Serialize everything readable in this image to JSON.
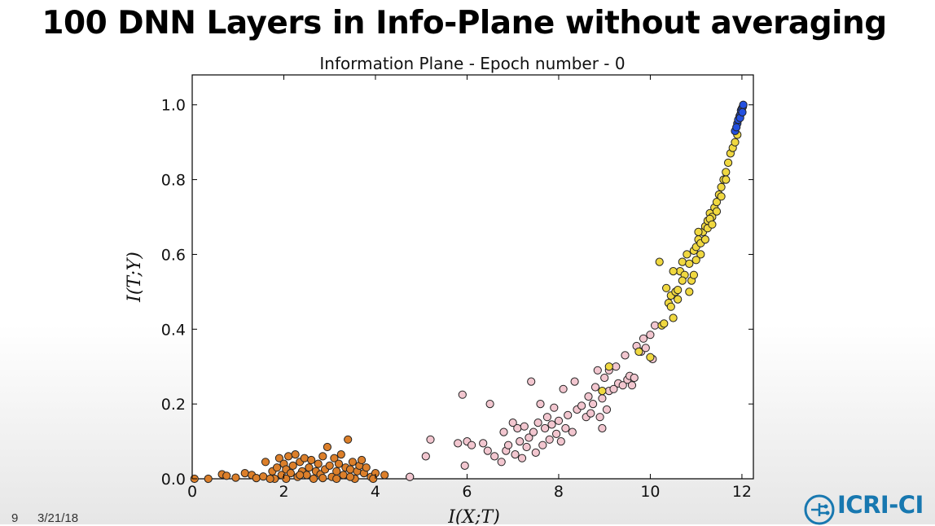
{
  "slide": {
    "title": "100 DNN Layers in Info-Plane without averaging",
    "footer_number": "9",
    "footer_date": "3/21/18"
  },
  "logo": {
    "text": "ICRI-CI",
    "color": "#1878b0"
  },
  "chart_data": {
    "type": "scatter",
    "title": "Information Plane - Epoch number - 0",
    "xlabel": "I(X;T)",
    "ylabel": "I(T;Y)",
    "xlim": [
      0,
      12.25
    ],
    "ylim": [
      0,
      1.08
    ],
    "xticks": [
      0,
      2,
      4,
      6,
      8,
      10,
      12
    ],
    "yticks": [
      0.0,
      0.2,
      0.4,
      0.6,
      0.8,
      1.0
    ],
    "grid": false,
    "legend": "none",
    "marker_edge_color": "#222222",
    "series": [
      {
        "color": "#dc7f2a",
        "points": [
          [
            0.05,
            0.0
          ],
          [
            0.35,
            0.0
          ],
          [
            0.65,
            0.012
          ],
          [
            0.75,
            0.008
          ],
          [
            0.95,
            0.003
          ],
          [
            1.15,
            0.015
          ],
          [
            1.3,
            0.01
          ],
          [
            1.4,
            0.002
          ],
          [
            1.55,
            0.006
          ],
          [
            1.6,
            0.045
          ],
          [
            1.75,
            0.02
          ],
          [
            1.8,
            0.0
          ],
          [
            1.85,
            0.03
          ],
          [
            1.9,
            0.055
          ],
          [
            1.95,
            0.01
          ],
          [
            2.0,
            0.04
          ],
          [
            2.05,
            0.025
          ],
          [
            2.1,
            0.06
          ],
          [
            2.15,
            0.015
          ],
          [
            2.2,
            0.035
          ],
          [
            2.25,
            0.065
          ],
          [
            2.3,
            0.005
          ],
          [
            2.35,
            0.045
          ],
          [
            2.4,
            0.02
          ],
          [
            2.45,
            0.055
          ],
          [
            2.5,
            0.01
          ],
          [
            2.55,
            0.03
          ],
          [
            2.6,
            0.05
          ],
          [
            2.65,
            0.0
          ],
          [
            2.7,
            0.02
          ],
          [
            2.75,
            0.04
          ],
          [
            2.8,
            0.012
          ],
          [
            2.85,
            0.06
          ],
          [
            2.9,
            0.025
          ],
          [
            2.95,
            0.085
          ],
          [
            3.0,
            0.035
          ],
          [
            3.05,
            0.005
          ],
          [
            3.1,
            0.055
          ],
          [
            3.15,
            0.02
          ],
          [
            3.2,
            0.04
          ],
          [
            3.25,
            0.065
          ],
          [
            3.3,
            0.01
          ],
          [
            3.35,
            0.03
          ],
          [
            3.4,
            0.105
          ],
          [
            3.45,
            0.025
          ],
          [
            3.5,
            0.045
          ],
          [
            3.55,
            0.0
          ],
          [
            3.6,
            0.02
          ],
          [
            3.65,
            0.035
          ],
          [
            3.7,
            0.05
          ],
          [
            3.75,
            0.015
          ],
          [
            3.8,
            0.03
          ],
          [
            3.9,
            0.005
          ],
          [
            4.0,
            0.015
          ],
          [
            4.2,
            0.01
          ],
          [
            4.75,
            0.005
          ],
          [
            1.7,
            0.0
          ],
          [
            2.35,
            0.01
          ],
          [
            2.85,
            0.002
          ],
          [
            3.45,
            0.005
          ],
          [
            3.95,
            0.0
          ],
          [
            2.05,
            0.0
          ],
          [
            3.15,
            0.0
          ]
        ]
      },
      {
        "color": "#f2c6cf",
        "points": [
          [
            4.75,
            0.005
          ],
          [
            5.1,
            0.06
          ],
          [
            5.2,
            0.105
          ],
          [
            5.8,
            0.095
          ],
          [
            5.9,
            0.225
          ],
          [
            5.95,
            0.035
          ],
          [
            6.0,
            0.1
          ],
          [
            6.1,
            0.09
          ],
          [
            6.35,
            0.095
          ],
          [
            6.45,
            0.075
          ],
          [
            6.5,
            0.2
          ],
          [
            6.6,
            0.06
          ],
          [
            6.75,
            0.045
          ],
          [
            6.8,
            0.125
          ],
          [
            6.85,
            0.075
          ],
          [
            6.9,
            0.09
          ],
          [
            7.0,
            0.15
          ],
          [
            7.05,
            0.065
          ],
          [
            7.1,
            0.135
          ],
          [
            7.15,
            0.1
          ],
          [
            7.2,
            0.055
          ],
          [
            7.25,
            0.14
          ],
          [
            7.3,
            0.085
          ],
          [
            7.35,
            0.11
          ],
          [
            7.4,
            0.26
          ],
          [
            7.45,
            0.125
          ],
          [
            7.5,
            0.07
          ],
          [
            7.55,
            0.15
          ],
          [
            7.6,
            0.2
          ],
          [
            7.65,
            0.09
          ],
          [
            7.7,
            0.135
          ],
          [
            7.75,
            0.165
          ],
          [
            7.8,
            0.105
          ],
          [
            7.85,
            0.145
          ],
          [
            7.9,
            0.19
          ],
          [
            7.95,
            0.12
          ],
          [
            8.0,
            0.155
          ],
          [
            8.05,
            0.1
          ],
          [
            8.1,
            0.24
          ],
          [
            8.15,
            0.135
          ],
          [
            8.2,
            0.17
          ],
          [
            8.3,
            0.125
          ],
          [
            8.35,
            0.26
          ],
          [
            8.4,
            0.185
          ],
          [
            8.5,
            0.195
          ],
          [
            8.6,
            0.165
          ],
          [
            8.65,
            0.22
          ],
          [
            8.7,
            0.175
          ],
          [
            8.75,
            0.2
          ],
          [
            8.8,
            0.245
          ],
          [
            8.85,
            0.29
          ],
          [
            8.9,
            0.165
          ],
          [
            8.95,
            0.215
          ],
          [
            9.0,
            0.27
          ],
          [
            9.05,
            0.185
          ],
          [
            9.1,
            0.235
          ],
          [
            9.2,
            0.24
          ],
          [
            9.25,
            0.3
          ],
          [
            9.3,
            0.255
          ],
          [
            9.4,
            0.25
          ],
          [
            9.45,
            0.33
          ],
          [
            9.5,
            0.265
          ],
          [
            9.55,
            0.275
          ],
          [
            9.6,
            0.25
          ],
          [
            9.7,
            0.355
          ],
          [
            9.8,
            0.34
          ],
          [
            9.85,
            0.375
          ],
          [
            9.9,
            0.35
          ],
          [
            10.0,
            0.385
          ],
          [
            10.05,
            0.32
          ],
          [
            10.1,
            0.41
          ],
          [
            8.95,
            0.135
          ],
          [
            9.1,
            0.29
          ],
          [
            9.65,
            0.27
          ]
        ]
      },
      {
        "color": "#f0d840",
        "points": [
          [
            8.95,
            0.235
          ],
          [
            9.1,
            0.3
          ],
          [
            9.75,
            0.34
          ],
          [
            10.0,
            0.325
          ],
          [
            10.2,
            0.58
          ],
          [
            10.25,
            0.41
          ],
          [
            10.3,
            0.415
          ],
          [
            10.35,
            0.51
          ],
          [
            10.4,
            0.47
          ],
          [
            10.45,
            0.49
          ],
          [
            10.5,
            0.43
          ],
          [
            10.55,
            0.5
          ],
          [
            10.6,
            0.48
          ],
          [
            10.65,
            0.555
          ],
          [
            10.7,
            0.58
          ],
          [
            10.75,
            0.545
          ],
          [
            10.8,
            0.6
          ],
          [
            10.85,
            0.575
          ],
          [
            10.9,
            0.53
          ],
          [
            10.95,
            0.61
          ],
          [
            11.0,
            0.62
          ],
          [
            11.05,
            0.64
          ],
          [
            11.1,
            0.6
          ],
          [
            11.15,
            0.66
          ],
          [
            11.2,
            0.675
          ],
          [
            11.25,
            0.69
          ],
          [
            11.3,
            0.71
          ],
          [
            11.35,
            0.7
          ],
          [
            11.4,
            0.725
          ],
          [
            11.45,
            0.74
          ],
          [
            11.5,
            0.76
          ],
          [
            11.55,
            0.78
          ],
          [
            11.6,
            0.8
          ],
          [
            11.65,
            0.82
          ],
          [
            11.7,
            0.845
          ],
          [
            11.75,
            0.87
          ],
          [
            11.8,
            0.885
          ],
          [
            11.85,
            0.9
          ],
          [
            11.9,
            0.92
          ],
          [
            10.5,
            0.555
          ],
          [
            10.7,
            0.53
          ],
          [
            10.85,
            0.5
          ],
          [
            11.0,
            0.585
          ],
          [
            11.1,
            0.63
          ],
          [
            11.2,
            0.64
          ],
          [
            11.3,
            0.695
          ],
          [
            11.45,
            0.715
          ],
          [
            10.45,
            0.46
          ],
          [
            10.6,
            0.505
          ],
          [
            10.95,
            0.545
          ],
          [
            11.05,
            0.66
          ],
          [
            11.25,
            0.67
          ],
          [
            11.35,
            0.68
          ],
          [
            11.55,
            0.755
          ],
          [
            11.65,
            0.8
          ]
        ]
      },
      {
        "color": "#2350e0",
        "points": [
          [
            11.85,
            0.93
          ],
          [
            11.9,
            0.95
          ],
          [
            11.92,
            0.96
          ],
          [
            11.95,
            0.97
          ],
          [
            11.97,
            0.975
          ],
          [
            11.98,
            0.985
          ],
          [
            12.0,
            0.99
          ],
          [
            12.02,
            0.995
          ],
          [
            12.03,
            1.0
          ],
          [
            11.88,
            0.94
          ],
          [
            11.96,
            0.965
          ],
          [
            12.01,
            0.98
          ]
        ]
      }
    ]
  }
}
